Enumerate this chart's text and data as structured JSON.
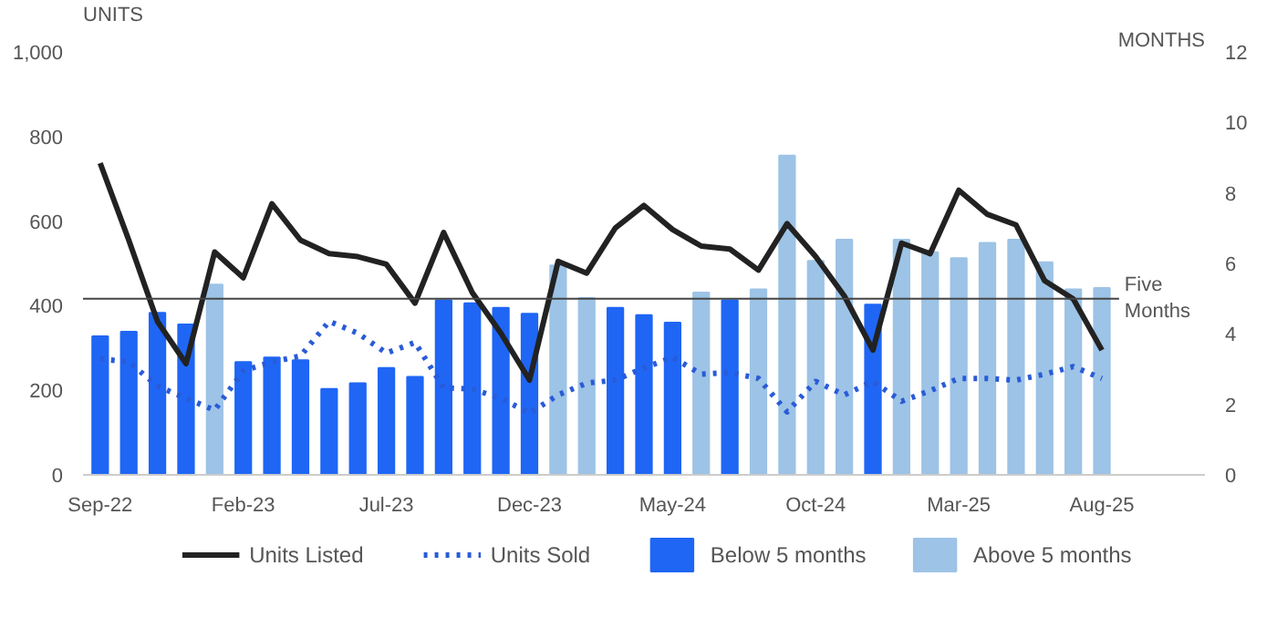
{
  "chart_data": {
    "type": "bar",
    "ylabel": "UNITS",
    "y2label": "MONTHS",
    "categories": [
      "Sep-22",
      null,
      null,
      null,
      null,
      "Feb-23",
      null,
      null,
      null,
      null,
      "Jul-23",
      null,
      null,
      null,
      null,
      "Dec-23",
      null,
      null,
      null,
      null,
      "May-24",
      null,
      null,
      null,
      null,
      "Oct-24",
      null,
      null,
      null,
      null,
      "Mar-25",
      null,
      null,
      null,
      null,
      "Aug-25"
    ],
    "series": [
      {
        "name": "Below 5 months",
        "axis": "y2",
        "color": "#1f66f5",
        "values": [
          3.93,
          4.06,
          4.6,
          4.27,
          null,
          3.2,
          3.33,
          3.25,
          2.44,
          2.6,
          3.03,
          2.78,
          4.95,
          4.87,
          4.74,
          4.57,
          null,
          null,
          4.74,
          4.53,
          4.32,
          null,
          4.95,
          null,
          null,
          null,
          null,
          4.83,
          null,
          null,
          null,
          null,
          null,
          null,
          null,
          null
        ]
      },
      {
        "name": "Above 5 months",
        "axis": "y2",
        "color": "#9dc3e6",
        "values": [
          null,
          null,
          null,
          null,
          5.4,
          null,
          null,
          null,
          null,
          null,
          null,
          null,
          null,
          null,
          null,
          null,
          5.94,
          5.02,
          null,
          null,
          null,
          5.17,
          null,
          5.26,
          9.06,
          6.07,
          6.67,
          null,
          6.67,
          6.32,
          6.15,
          6.58,
          6.67,
          6.03,
          5.26,
          5.3
        ]
      },
      {
        "name": "Units Listed",
        "type": "line",
        "line_style": "solid",
        "color": "#222222",
        "values": [
          737,
          555,
          363,
          263,
          527,
          466,
          641,
          555,
          523,
          516,
          498,
          406,
          573,
          431,
          335,
          224,
          505,
          477,
          584,
          637,
          580,
          541,
          534,
          484,
          594,
          516,
          423,
          295,
          548,
          523,
          673,
          616,
          591,
          459,
          416,
          295
        ]
      },
      {
        "name": "Units Sold",
        "type": "line",
        "line_style": "dotted",
        "color": "#2a5bd7",
        "values": [
          274,
          267,
          210,
          181,
          153,
          246,
          267,
          281,
          363,
          335,
          288,
          313,
          206,
          203,
          181,
          146,
          189,
          217,
          224,
          253,
          278,
          238,
          242,
          228,
          149,
          221,
          189,
          221,
          174,
          199,
          228,
          228,
          224,
          238,
          256,
          228
        ]
      }
    ],
    "ylim": [
      0,
      1000
    ],
    "yticks": [
      0,
      200,
      400,
      600,
      800,
      {
        "value": 1000,
        "label": "1,000"
      }
    ],
    "y2lim": [
      0,
      12
    ],
    "y2ticks": [
      0,
      2,
      4,
      6,
      8,
      10,
      12
    ],
    "ref_lines": [
      {
        "axis": "y2",
        "value": 5,
        "label": "Five Months",
        "color": "#444444"
      }
    ],
    "grid": false,
    "legend": "bottom"
  }
}
